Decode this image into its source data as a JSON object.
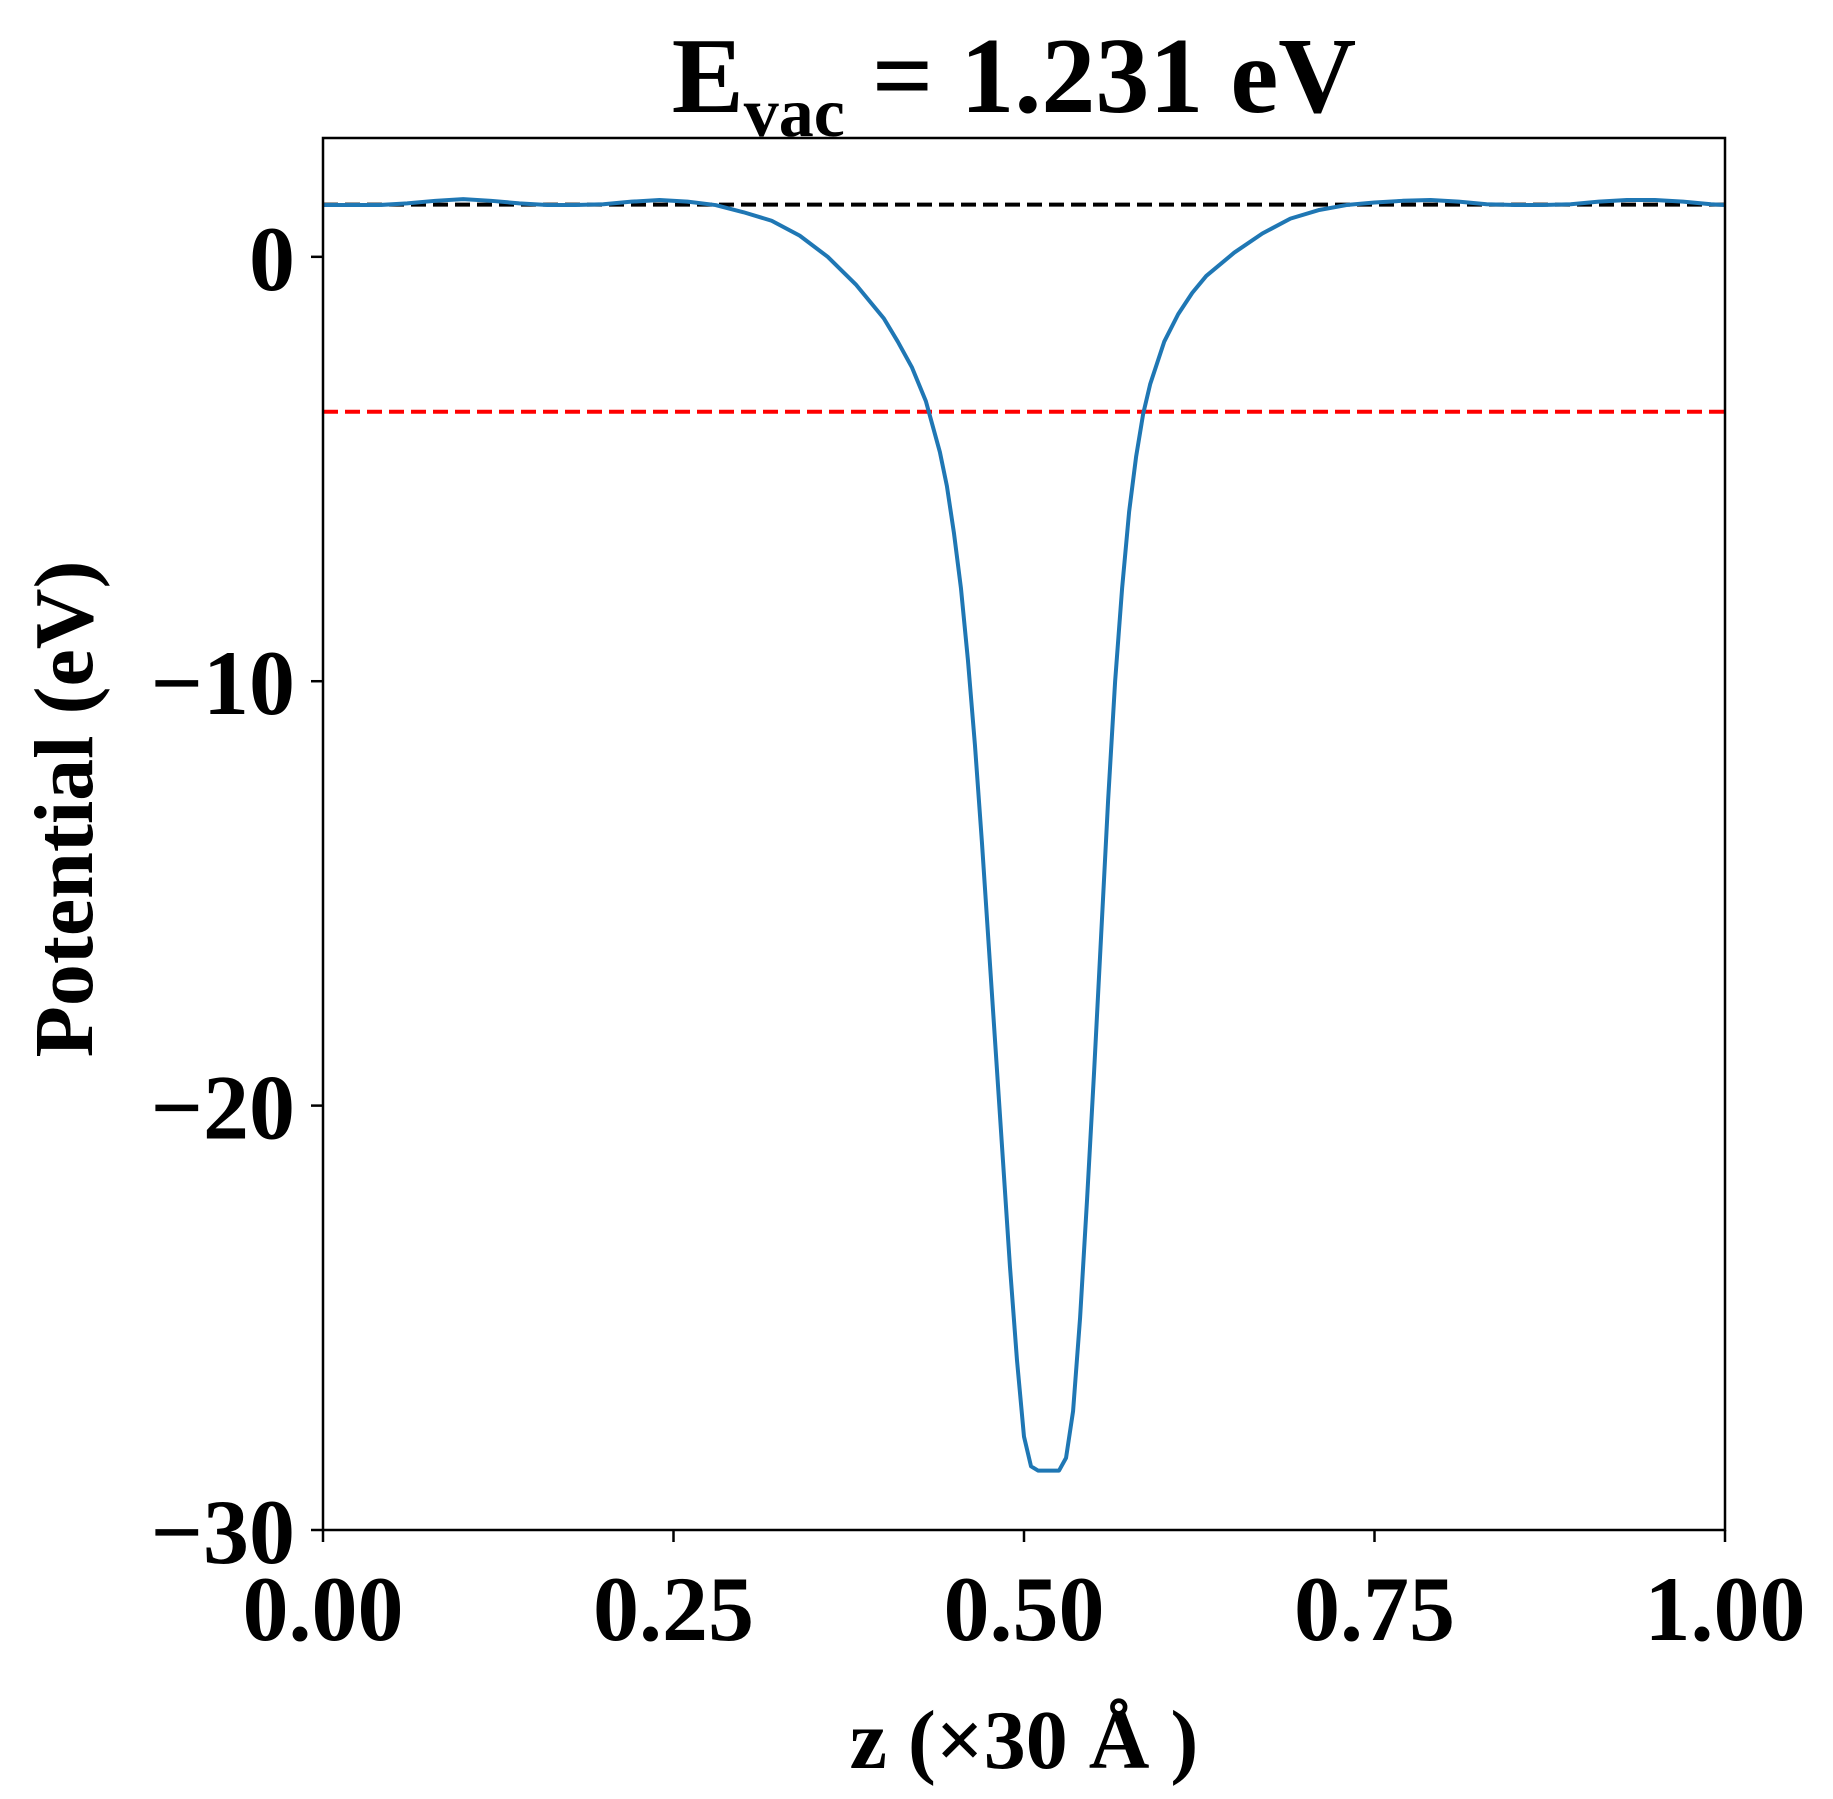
{
  "chart_data": {
    "type": "line",
    "title": {
      "main": "E",
      "subscript": "vac",
      "rest": " = 1.231 eV"
    },
    "xlabel": "z (×30 Å )",
    "ylabel": "Potential (eV)",
    "xlim": [
      0.0,
      1.0
    ],
    "ylim": [
      -30.0,
      2.8
    ],
    "x_ticks": [
      {
        "value": 0.0,
        "label": "0.00"
      },
      {
        "value": 0.25,
        "label": "0.25"
      },
      {
        "value": 0.5,
        "label": "0.50"
      },
      {
        "value": 0.75,
        "label": "0.75"
      },
      {
        "value": 1.0,
        "label": "1.00"
      }
    ],
    "y_ticks": [
      {
        "value": 0,
        "label": "0"
      },
      {
        "value": -10,
        "label": "−10"
      },
      {
        "value": -20,
        "label": "−20"
      },
      {
        "value": -30,
        "label": "−30"
      }
    ],
    "grid": false,
    "reference_lines": [
      {
        "y": 1.231,
        "color": "#000000",
        "style": "dashed"
      },
      {
        "y": -3.65,
        "color": "#ff0000",
        "style": "dashed"
      }
    ],
    "series": [
      {
        "color": "#1f77b4",
        "x": [
          0.0,
          0.04,
          0.06,
          0.08,
          0.1,
          0.12,
          0.14,
          0.16,
          0.18,
          0.2,
          0.22,
          0.24,
          0.26,
          0.28,
          0.3,
          0.32,
          0.34,
          0.36,
          0.38,
          0.4,
          0.41,
          0.42,
          0.43,
          0.44,
          0.445,
          0.45,
          0.455,
          0.46,
          0.465,
          0.47,
          0.475,
          0.48,
          0.485,
          0.49,
          0.495,
          0.5,
          0.505,
          0.51,
          0.515,
          0.52,
          0.525,
          0.53,
          0.535,
          0.54,
          0.545,
          0.55,
          0.555,
          0.56,
          0.565,
          0.57,
          0.575,
          0.58,
          0.585,
          0.59,
          0.6,
          0.61,
          0.62,
          0.63,
          0.65,
          0.67,
          0.69,
          0.71,
          0.73,
          0.75,
          0.77,
          0.79,
          0.81,
          0.83,
          0.85,
          0.87,
          0.89,
          0.91,
          0.93,
          0.95,
          0.97,
          0.99,
          1.0
        ],
        "y": [
          1.22,
          1.22,
          1.26,
          1.32,
          1.36,
          1.32,
          1.26,
          1.22,
          1.22,
          1.24,
          1.3,
          1.34,
          1.3,
          1.22,
          1.05,
          0.85,
          0.5,
          0.0,
          -0.65,
          -1.45,
          -2.0,
          -2.6,
          -3.4,
          -4.6,
          -5.4,
          -6.5,
          -7.8,
          -9.5,
          -11.5,
          -13.8,
          -16.3,
          -18.8,
          -21.3,
          -23.8,
          -26.0,
          -27.8,
          -28.5,
          -28.6,
          -28.6,
          -28.6,
          -28.6,
          -28.3,
          -27.2,
          -25.0,
          -22.2,
          -19.2,
          -16.0,
          -12.8,
          -10.0,
          -7.8,
          -6.0,
          -4.7,
          -3.7,
          -3.0,
          -2.0,
          -1.35,
          -0.85,
          -0.45,
          0.1,
          0.55,
          0.9,
          1.1,
          1.22,
          1.28,
          1.32,
          1.34,
          1.3,
          1.24,
          1.22,
          1.22,
          1.24,
          1.3,
          1.34,
          1.34,
          1.3,
          1.24,
          1.22
        ]
      }
    ]
  }
}
